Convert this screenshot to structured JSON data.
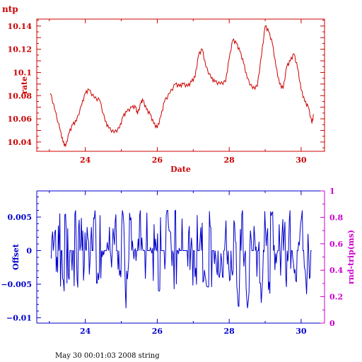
{
  "title": "ntp",
  "footer": "May 30 00:01:03 2008 string",
  "colors": {
    "top": "#cc0000",
    "bottom": "#0000cc",
    "secondary": "#cc00cc"
  },
  "chart_data": [
    {
      "type": "line",
      "xlabel": "Date",
      "ylabel": "rate",
      "xlim": [
        22.65,
        30.65
      ],
      "ylim": [
        10.032,
        10.146
      ],
      "xticks": [
        {
          "v": 24,
          "label": "24"
        },
        {
          "v": 26,
          "label": "26"
        },
        {
          "v": 28,
          "label": "28"
        },
        {
          "v": 30,
          "label": "30"
        }
      ],
      "yticks": [
        {
          "v": 10.04,
          "label": "10.04"
        },
        {
          "v": 10.06,
          "label": "10.06"
        },
        {
          "v": 10.08,
          "label": "10.08"
        },
        {
          "v": 10.1,
          "label": "10.1"
        },
        {
          "v": 10.12,
          "label": "10.12"
        },
        {
          "v": 10.14,
          "label": "10.14"
        }
      ],
      "series": [
        {
          "x": [
            23.03,
            23.15,
            23.3,
            23.38,
            23.45,
            23.55,
            23.65,
            23.75,
            23.9,
            24.0,
            24.1,
            24.25,
            24.4,
            24.55,
            24.65,
            24.8,
            24.95,
            25.05,
            25.15,
            25.3,
            25.4,
            25.45,
            25.55,
            25.6,
            25.7,
            25.8,
            25.9,
            26.0,
            26.1,
            26.2,
            26.35,
            26.5,
            26.62,
            26.72,
            26.85,
            26.95,
            27.05,
            27.15,
            27.25,
            27.35,
            27.5,
            27.6,
            27.75,
            27.9,
            28.0,
            28.1,
            28.2,
            28.3,
            28.4,
            28.5,
            28.65,
            28.78,
            28.9,
            29.0,
            29.1,
            29.2,
            29.3,
            29.4,
            29.5,
            29.6,
            29.7,
            29.8,
            29.9,
            30.0,
            30.1,
            30.2,
            30.3,
            30.35
          ],
          "y": [
            10.082,
            10.068,
            10.05,
            10.04,
            10.036,
            10.048,
            10.055,
            10.058,
            10.072,
            10.082,
            10.085,
            10.078,
            10.076,
            10.058,
            10.052,
            10.048,
            10.052,
            10.062,
            10.066,
            10.07,
            10.07,
            10.064,
            10.074,
            10.076,
            10.068,
            10.064,
            10.056,
            10.052,
            10.062,
            10.075,
            10.082,
            10.09,
            10.088,
            10.09,
            10.088,
            10.092,
            10.096,
            10.115,
            10.12,
            10.105,
            10.095,
            10.092,
            10.09,
            10.092,
            10.112,
            10.128,
            10.125,
            10.118,
            10.108,
            10.095,
            10.086,
            10.088,
            10.115,
            10.14,
            10.135,
            10.125,
            10.105,
            10.09,
            10.086,
            10.105,
            10.11,
            10.116,
            10.104,
            10.085,
            10.075,
            10.07,
            10.056,
            10.064
          ]
        }
      ]
    },
    {
      "type": "line",
      "xlabel": "",
      "ylabel": "Offset",
      "ylabel2": "rnd-trip(ms)",
      "xlim": [
        22.65,
        30.65
      ],
      "ylim": [
        -0.0108,
        0.0089
      ],
      "y2lim": [
        0,
        1
      ],
      "xticks": [
        {
          "v": 24,
          "label": "24"
        },
        {
          "v": 26,
          "label": "26"
        },
        {
          "v": 28,
          "label": "28"
        },
        {
          "v": 30,
          "label": "30"
        }
      ],
      "yticks": [
        {
          "v": 0.005,
          "label": "0.005"
        },
        {
          "v": 0,
          "label": "0"
        },
        {
          "v": -0.005,
          "label": "−0.005"
        },
        {
          "v": -0.01,
          "label": "−0.01"
        }
      ],
      "y2ticks": [
        {
          "v": 0,
          "label": "0"
        },
        {
          "v": 0.2,
          "label": "0.2"
        },
        {
          "v": 0.4,
          "label": "0.4"
        },
        {
          "v": 0.6,
          "label": "0.6"
        },
        {
          "v": 0.8,
          "label": "0.8"
        },
        {
          "v": 1,
          "label": "1"
        }
      ],
      "series": [
        {
          "x_start": 23.05,
          "x_end": 30.3,
          "x_step": 0.02,
          "amplitude": 0.006,
          "y_min": -0.009,
          "y_max": 0.006
        }
      ]
    }
  ]
}
